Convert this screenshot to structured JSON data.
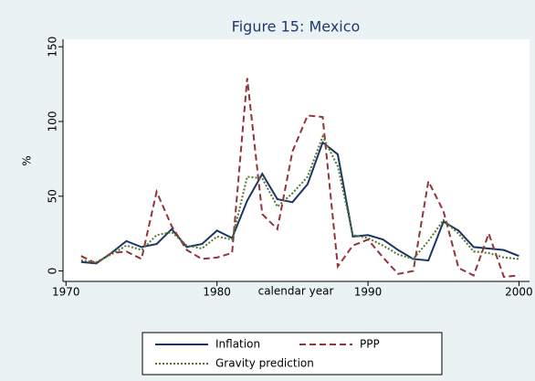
{
  "chart_data": {
    "type": "line",
    "title": "Figure 15: Mexico",
    "x_label": "calendar year",
    "y_label": "%",
    "x": [
      1971,
      1972,
      1973,
      1974,
      1975,
      1976,
      1977,
      1978,
      1979,
      1980,
      1981,
      1982,
      1983,
      1984,
      1985,
      1986,
      1987,
      1988,
      1989,
      1990,
      1991,
      1992,
      1993,
      1994,
      1995,
      1996,
      1997,
      1998,
      1999,
      2000
    ],
    "series": [
      {
        "name": "Inflation",
        "color": "#1a3563",
        "dash": "solid",
        "values": [
          6,
          5,
          12,
          20,
          16,
          18,
          28,
          16,
          18,
          27,
          22,
          47,
          65,
          48,
          46,
          58,
          86,
          78,
          23,
          24,
          21,
          14,
          8,
          7,
          33,
          27,
          16,
          15,
          14,
          10
        ]
      },
      {
        "name": "PPP",
        "color": "#90353b",
        "dash": "dashed",
        "values": [
          10,
          5,
          12,
          13,
          8,
          53,
          30,
          14,
          8,
          9,
          12,
          129,
          38,
          28,
          80,
          104,
          103,
          3,
          17,
          21,
          9,
          -2,
          0,
          60,
          40,
          2,
          -3,
          25,
          -4,
          -3
        ]
      },
      {
        "name": "Gravity prediction",
        "color": "#55752f",
        "dash": "dotted",
        "values": [
          7,
          6,
          11,
          17,
          14,
          24,
          26,
          17,
          15,
          23,
          21,
          63,
          62,
          43,
          52,
          63,
          90,
          70,
          24,
          22,
          17,
          11,
          8,
          20,
          34,
          25,
          13,
          12,
          9,
          8
        ]
      }
    ],
    "xlim": [
      1969.8,
      2000.7
    ],
    "ylim": [
      -7,
      155
    ],
    "xticks": [
      1970,
      1980,
      1990,
      2000
    ],
    "yticks": [
      0,
      50,
      100,
      150
    ],
    "legend": "bottom"
  }
}
